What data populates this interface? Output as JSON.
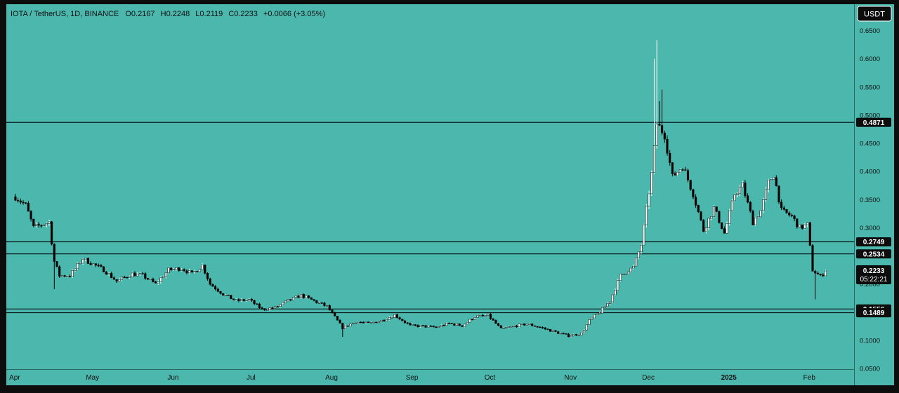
{
  "header": {
    "symbol": "IOTA / TetherUS, 1D, BINANCE",
    "open_label": "O",
    "open": "0.2167",
    "high_label": "H",
    "high": "0.2248",
    "low_label": "L",
    "low": "0.2119",
    "close_label": "C",
    "close": "0.2233",
    "change": "+0.0066 (+3.05%)"
  },
  "currency_button": "USDT",
  "price_badge": {
    "price": "0.2233",
    "countdown": "05:22:21"
  },
  "colors": {
    "background": "#4cb8ad",
    "up": "#ffffff",
    "down": "#000000",
    "line": "#000000",
    "badge": "#000000"
  },
  "chart_data": {
    "type": "candlestick",
    "y_axis": {
      "ticks": [
        "0.6500",
        "0.6000",
        "0.5500",
        "0.5000",
        "0.4500",
        "0.4000",
        "0.3500",
        "0.3000",
        "0.2000",
        "0.1000",
        "0.0500"
      ],
      "ylim": [
        0.05,
        0.65
      ]
    },
    "x_axis": {
      "labels": [
        "Apr",
        "May",
        "Jun",
        "Jul",
        "Aug",
        "Sep",
        "Oct",
        "Nov",
        "Dec",
        "2025",
        "Feb"
      ]
    },
    "horizontal_levels": [
      {
        "value": 0.4871,
        "label": "0.4871"
      },
      {
        "value": 0.2749,
        "label": "0.2749"
      },
      {
        "value": 0.2534,
        "label": "0.2534"
      },
      {
        "value": 0.1556,
        "label": "0.1556"
      },
      {
        "value": 0.1489,
        "label": "0.1489"
      }
    ],
    "last_price": 0.2233,
    "price_anchors": [
      [
        "2024-04-01",
        0.355
      ],
      [
        "2024-04-05",
        0.34
      ],
      [
        "2024-04-08",
        0.3
      ],
      [
        "2024-04-14",
        0.31
      ],
      [
        "2024-04-16",
        0.24
      ],
      [
        "2024-04-18",
        0.215
      ],
      [
        "2024-04-22",
        0.215
      ],
      [
        "2024-04-27",
        0.245
      ],
      [
        "2024-05-05",
        0.225
      ],
      [
        "2024-05-10",
        0.205
      ],
      [
        "2024-05-16",
        0.218
      ],
      [
        "2024-05-20",
        0.215
      ],
      [
        "2024-05-25",
        0.2
      ],
      [
        "2024-05-30",
        0.225
      ],
      [
        "2024-06-04",
        0.228
      ],
      [
        "2024-06-08",
        0.218
      ],
      [
        "2024-06-12",
        0.233
      ],
      [
        "2024-06-15",
        0.2
      ],
      [
        "2024-06-20",
        0.182
      ],
      [
        "2024-06-25",
        0.17
      ],
      [
        "2024-06-30",
        0.172
      ],
      [
        "2024-07-05",
        0.155
      ],
      [
        "2024-07-10",
        0.158
      ],
      [
        "2024-07-15",
        0.17
      ],
      [
        "2024-07-20",
        0.18
      ],
      [
        "2024-07-25",
        0.17
      ],
      [
        "2024-07-30",
        0.16
      ],
      [
        "2024-08-05",
        0.122
      ],
      [
        "2024-08-10",
        0.133
      ],
      [
        "2024-08-15",
        0.13
      ],
      [
        "2024-08-20",
        0.135
      ],
      [
        "2024-08-25",
        0.145
      ],
      [
        "2024-08-31",
        0.126
      ],
      [
        "2024-09-05",
        0.125
      ],
      [
        "2024-09-10",
        0.123
      ],
      [
        "2024-09-15",
        0.13
      ],
      [
        "2024-09-20",
        0.126
      ],
      [
        "2024-09-25",
        0.142
      ],
      [
        "2024-09-30",
        0.144
      ],
      [
        "2024-10-05",
        0.12
      ],
      [
        "2024-10-10",
        0.125
      ],
      [
        "2024-10-15",
        0.129
      ],
      [
        "2024-10-20",
        0.123
      ],
      [
        "2024-10-25",
        0.116
      ],
      [
        "2024-10-31",
        0.108
      ],
      [
        "2024-11-05",
        0.112
      ],
      [
        "2024-11-08",
        0.135
      ],
      [
        "2024-11-12",
        0.15
      ],
      [
        "2024-11-16",
        0.17
      ],
      [
        "2024-11-20",
        0.215
      ],
      [
        "2024-11-25",
        0.23
      ],
      [
        "2024-11-28",
        0.27
      ],
      [
        "2024-12-02",
        0.395
      ],
      [
        "2024-12-04",
        0.485
      ],
      [
        "2024-12-07",
        0.465
      ],
      [
        "2024-12-10",
        0.39
      ],
      [
        "2024-12-14",
        0.41
      ],
      [
        "2024-12-18",
        0.36
      ],
      [
        "2024-12-22",
        0.295
      ],
      [
        "2024-12-26",
        0.335
      ],
      [
        "2024-12-30",
        0.29
      ],
      [
        "2025-01-03",
        0.36
      ],
      [
        "2025-01-06",
        0.375
      ],
      [
        "2025-01-10",
        0.31
      ],
      [
        "2025-01-13",
        0.33
      ],
      [
        "2025-01-16",
        0.38
      ],
      [
        "2025-01-18",
        0.395
      ],
      [
        "2025-01-21",
        0.33
      ],
      [
        "2025-01-25",
        0.32
      ],
      [
        "2025-01-28",
        0.3
      ],
      [
        "2025-01-31",
        0.305
      ],
      [
        "2025-02-02",
        0.225
      ],
      [
        "2025-02-05",
        0.213
      ],
      [
        "2025-02-07",
        0.2233
      ]
    ],
    "spike_highs": [
      [
        "2024-12-03",
        0.6
      ],
      [
        "2024-12-04",
        0.633
      ],
      [
        "2024-12-05",
        0.525
      ],
      [
        "2024-12-06",
        0.545
      ]
    ],
    "spike_lows": [
      [
        "2025-02-03",
        0.173
      ],
      [
        "2024-04-16",
        0.191
      ],
      [
        "2024-08-05",
        0.106
      ]
    ]
  }
}
